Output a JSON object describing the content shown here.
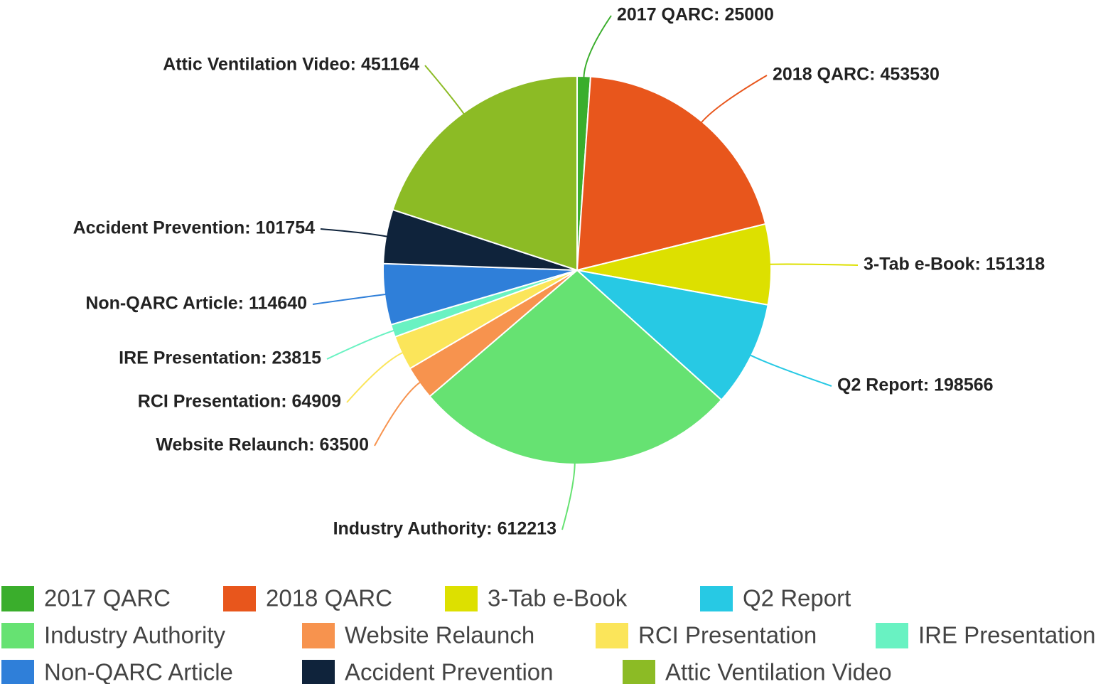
{
  "chart_data": {
    "type": "pie",
    "categories": [
      "2017 QARC",
      "2018 QARC",
      "3-Tab e-Book",
      "Q2 Report",
      "Industry Authority",
      "Website Relaunch",
      "RCI Presentation",
      "IRE Presentation",
      "Non-QARC Article",
      "Accident Prevention",
      "Attic Ventilation Video"
    ],
    "values": [
      25000,
      453530,
      151318,
      198566,
      612213,
      63500,
      64909,
      23815,
      114640,
      101754,
      451164
    ],
    "value_labels": [
      "2017 QARC: 25000",
      "2018 QARC: 453530",
      "3-Tab e-Book: 151318",
      "Q2 Report: 198566",
      "Industry Authority: 612213",
      "Website Relaunch: 63500",
      "RCI Presentation: 64909",
      "IRE Presentation: 23815",
      "Non-QARC Article: 114640",
      "Accident Prevention: 101754",
      "Attic Ventilation Video: 451164"
    ],
    "colors": [
      "#3aae2c",
      "#e8561c",
      "#dde000",
      "#27c9e4",
      "#66e272",
      "#f7934e",
      "#fbe55a",
      "#69f2c2",
      "#2f7fd9",
      "#0f233b",
      "#8cbb25"
    ],
    "legend": "bottom"
  }
}
